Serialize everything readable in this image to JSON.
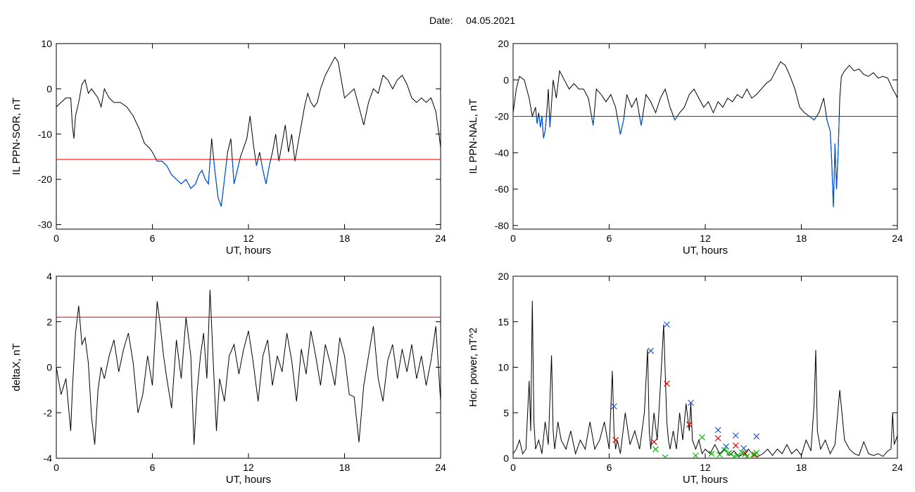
{
  "figure": {
    "date_label": "Date:",
    "date_value": "04.05.2021"
  },
  "chart_data": [
    {
      "type": "line",
      "xlabel": "UT, hours",
      "ylabel": "IL PPN-SOR, nT",
      "xlim": [
        0,
        24
      ],
      "ylim": [
        -31,
        10
      ],
      "xticks": [
        0,
        6,
        12,
        18,
        24
      ],
      "yticks": [
        -30,
        -20,
        -10,
        0,
        10
      ],
      "threshold": -15.6,
      "threshold_color": "#dd0000",
      "below_threshold_color": "#0055dd",
      "line_color": "#000000",
      "series": [
        {
          "x": [
            0,
            0.3,
            0.6,
            0.9,
            1.0,
            1.1,
            1.2,
            1.4,
            1.6,
            1.8,
            2.0,
            2.2,
            2.4,
            2.6,
            2.8,
            3.0,
            3.3,
            3.6,
            4.0,
            4.4,
            4.8,
            5.2,
            5.5,
            5.8,
            6.0,
            6.3,
            6.6,
            6.9,
            7.2,
            7.5,
            7.8,
            8.1,
            8.4,
            8.7,
            8.9,
            9.1,
            9.3,
            9.5,
            9.7,
            9.9,
            10.1,
            10.3,
            10.5,
            10.7,
            10.9,
            11.1,
            11.3,
            11.5,
            11.7,
            11.9,
            12.1,
            12.3,
            12.5,
            12.7,
            12.9,
            13.1,
            13.3,
            13.5,
            13.7,
            13.9,
            14.1,
            14.3,
            14.5,
            14.7,
            14.9,
            15.1,
            15.3,
            15.5,
            15.7,
            15.9,
            16.1,
            16.3,
            16.5,
            16.8,
            17.1,
            17.4,
            17.6,
            17.8,
            18.0,
            18.3,
            18.6,
            18.9,
            19.2,
            19.5,
            19.8,
            20.1,
            20.4,
            20.7,
            21.0,
            21.3,
            21.6,
            21.9,
            22.2,
            22.5,
            22.8,
            23.1,
            23.4,
            23.7,
            23.9,
            24.0
          ],
          "y": [
            -4,
            -3,
            -2,
            -2,
            -8,
            -11,
            -6,
            -3,
            1,
            2,
            -1,
            0,
            -1,
            -2,
            -4,
            0,
            -2,
            -3,
            -3,
            -4,
            -6,
            -9,
            -12,
            -13,
            -14,
            -16,
            -16,
            -17,
            -19,
            -20,
            -21,
            -20,
            -22,
            -21,
            -19,
            -18,
            -20,
            -21,
            -11,
            -18,
            -24,
            -26,
            -20,
            -14,
            -11,
            -21,
            -18,
            -15,
            -13,
            -11,
            -6,
            -12,
            -17,
            -14,
            -18,
            -21,
            -17,
            -14,
            -10,
            -16,
            -12,
            -8,
            -14,
            -10,
            -16,
            -12,
            -8,
            -4,
            -1,
            -3,
            -4,
            -3,
            0,
            3,
            5,
            7,
            6,
            2,
            -2,
            -1,
            0,
            -4,
            -8,
            -3,
            0,
            -1,
            3,
            2,
            0,
            2,
            3,
            1,
            -2,
            -3,
            -2,
            -3,
            -2,
            -5,
            -10,
            -13
          ]
        }
      ]
    },
    {
      "type": "line",
      "xlabel": "UT, hours",
      "ylabel": "IL PPN-NAL, nT",
      "xlim": [
        0,
        24
      ],
      "ylim": [
        -82,
        20
      ],
      "xticks": [
        0,
        6,
        12,
        18,
        24
      ],
      "yticks": [
        -80,
        -60,
        -40,
        -20,
        0,
        20
      ],
      "threshold": -20,
      "threshold_color": "#dd0000",
      "below_threshold_color": "#0055dd",
      "line_color": "#000000",
      "series": [
        {
          "x": [
            0,
            0.2,
            0.4,
            0.7,
            1.0,
            1.2,
            1.4,
            1.5,
            1.6,
            1.7,
            1.8,
            1.9,
            2.0,
            2.1,
            2.2,
            2.3,
            2.5,
            2.7,
            2.9,
            3.2,
            3.5,
            3.8,
            4.1,
            4.4,
            4.7,
            4.9,
            5.0,
            5.2,
            5.5,
            5.8,
            6.1,
            6.4,
            6.7,
            6.9,
            7.1,
            7.4,
            7.7,
            8.0,
            8.3,
            8.6,
            8.9,
            9.2,
            9.5,
            9.8,
            10.1,
            10.4,
            10.7,
            11.0,
            11.3,
            11.6,
            11.9,
            12.2,
            12.5,
            12.8,
            13.1,
            13.4,
            13.7,
            14.0,
            14.3,
            14.6,
            14.9,
            15.2,
            15.5,
            15.8,
            16.1,
            16.4,
            16.7,
            17.0,
            17.3,
            17.6,
            17.9,
            18.2,
            18.5,
            18.8,
            19.1,
            19.4,
            19.6,
            19.8,
            19.9,
            20.0,
            20.05,
            20.1,
            20.2,
            20.3,
            20.4,
            20.5,
            20.7,
            21.0,
            21.3,
            21.6,
            21.9,
            22.2,
            22.5,
            22.8,
            23.1,
            23.4,
            23.7,
            23.9,
            24.0
          ],
          "y": [
            -18,
            -5,
            2,
            0,
            -10,
            -20,
            -15,
            -24,
            -18,
            -26,
            -20,
            -32,
            -28,
            -18,
            -5,
            -26,
            0,
            -10,
            5,
            0,
            -5,
            -2,
            -5,
            -5,
            -10,
            -20,
            -25,
            -5,
            -8,
            -12,
            -8,
            -15,
            -30,
            -22,
            -8,
            -15,
            -10,
            -25,
            -8,
            -12,
            -18,
            -10,
            -5,
            -15,
            -22,
            -18,
            -15,
            -8,
            -5,
            -10,
            -15,
            -12,
            -18,
            -12,
            -15,
            -10,
            -12,
            -8,
            -10,
            -5,
            -10,
            -8,
            -5,
            -2,
            0,
            5,
            10,
            8,
            2,
            -5,
            -15,
            -18,
            -20,
            -22,
            -18,
            -10,
            -22,
            -28,
            -45,
            -70,
            -55,
            -35,
            -60,
            -40,
            -10,
            2,
            5,
            8,
            5,
            6,
            3,
            2,
            4,
            1,
            2,
            1,
            -5,
            -8,
            -10
          ]
        }
      ]
    },
    {
      "type": "line",
      "xlabel": "UT, hours",
      "ylabel": "deltaX, nT",
      "xlim": [
        0,
        24
      ],
      "ylim": [
        -4,
        4
      ],
      "xticks": [
        0,
        6,
        12,
        18,
        24
      ],
      "yticks": [
        -4,
        -2,
        0,
        2,
        4
      ],
      "threshold": 2.2,
      "threshold_color": "#dd0000",
      "line_color": "#000000",
      "series": [
        {
          "x": [
            0,
            0.3,
            0.6,
            0.9,
            1.0,
            1.2,
            1.4,
            1.6,
            1.8,
            2.0,
            2.2,
            2.4,
            2.6,
            2.8,
            3.0,
            3.3,
            3.6,
            3.9,
            4.2,
            4.5,
            4.8,
            5.1,
            5.4,
            5.7,
            6.0,
            6.3,
            6.5,
            6.7,
            6.9,
            7.2,
            7.5,
            7.8,
            8.1,
            8.4,
            8.6,
            8.8,
            9.0,
            9.2,
            9.4,
            9.6,
            9.8,
            10.0,
            10.2,
            10.5,
            10.8,
            11.1,
            11.4,
            11.7,
            12.0,
            12.3,
            12.6,
            12.9,
            13.2,
            13.5,
            13.8,
            14.1,
            14.4,
            14.7,
            15.0,
            15.3,
            15.6,
            15.9,
            16.2,
            16.5,
            16.8,
            17.1,
            17.4,
            17.7,
            18.0,
            18.3,
            18.6,
            18.9,
            19.2,
            19.5,
            19.8,
            20.1,
            20.4,
            20.7,
            21.0,
            21.3,
            21.6,
            21.9,
            22.2,
            22.5,
            22.8,
            23.1,
            23.4,
            23.7,
            24.0
          ],
          "y": [
            0,
            -1.2,
            -0.5,
            -2.8,
            -1,
            1.5,
            2.7,
            1,
            1.3,
            0.2,
            -2.2,
            -3.4,
            -1,
            0,
            -0.5,
            0.5,
            1.2,
            -0.2,
            0.8,
            1.5,
            0.2,
            -2,
            -1.2,
            0.5,
            -0.8,
            2.9,
            1.8,
            0.5,
            -0.5,
            -1.8,
            1.2,
            -0.5,
            2.2,
            0.5,
            -3.4,
            -1,
            0.5,
            1.5,
            -0.5,
            3.4,
            0.2,
            -2.8,
            -0.5,
            -1.5,
            0.5,
            1,
            -0.3,
            0.8,
            1.6,
            0.2,
            -1.5,
            0.5,
            1.2,
            -0.8,
            0.5,
            -0.2,
            1.5,
            0.3,
            -1.5,
            0.8,
            -0.3,
            1.6,
            0.5,
            -0.8,
            1,
            0.2,
            -0.8,
            1.3,
            0.5,
            -1.2,
            -1.3,
            -3.3,
            -0.8,
            0.5,
            1.8,
            -0.5,
            -1.5,
            0.3,
            1,
            -0.5,
            0.8,
            -0.2,
            1,
            -0.5,
            0.5,
            -0.8,
            0.3,
            1.8,
            -1.5
          ]
        }
      ]
    },
    {
      "type": "line",
      "xlabel": "UT, hours",
      "ylabel": "Hor. power, nT^2",
      "xlim": [
        0,
        24
      ],
      "ylim": [
        0,
        20
      ],
      "xticks": [
        0,
        6,
        12,
        18,
        24
      ],
      "yticks": [
        0,
        5,
        10,
        15,
        20
      ],
      "line_color": "#000000",
      "series": [
        {
          "x": [
            0,
            0.2,
            0.4,
            0.6,
            0.8,
            1.0,
            1.1,
            1.2,
            1.3,
            1.4,
            1.6,
            1.8,
            2.0,
            2.2,
            2.4,
            2.5,
            2.6,
            2.8,
            3.0,
            3.3,
            3.6,
            3.9,
            4.2,
            4.5,
            4.8,
            5.1,
            5.4,
            5.7,
            6.0,
            6.2,
            6.3,
            6.4,
            6.5,
            6.7,
            7.0,
            7.3,
            7.6,
            7.9,
            8.2,
            8.4,
            8.5,
            8.6,
            8.8,
            9.0,
            9.2,
            9.4,
            9.6,
            9.7,
            9.8,
            10.0,
            10.2,
            10.4,
            10.6,
            10.8,
            11.0,
            11.1,
            11.2,
            11.4,
            11.6,
            11.8,
            12.0,
            12.3,
            12.6,
            12.9,
            13.2,
            13.5,
            13.8,
            14.1,
            14.4,
            14.7,
            15.0,
            15.3,
            15.6,
            15.9,
            16.2,
            16.5,
            16.8,
            17.1,
            17.4,
            17.7,
            18.0,
            18.3,
            18.6,
            18.8,
            18.9,
            19.0,
            19.2,
            19.5,
            19.8,
            20.1,
            20.4,
            20.7,
            21.0,
            21.3,
            21.6,
            21.9,
            22.2,
            22.5,
            22.8,
            23.1,
            23.4,
            23.6,
            23.7,
            23.8,
            24.0
          ],
          "y": [
            0.5,
            1,
            2,
            0.5,
            1,
            8.5,
            3,
            17.3,
            4,
            1,
            2,
            0.5,
            4,
            1.5,
            11.3,
            3,
            1,
            4,
            2,
            1,
            3,
            0.5,
            2,
            1,
            4,
            1,
            2,
            4,
            1,
            9.6,
            3,
            1,
            2,
            0.5,
            5,
            1.5,
            3,
            1,
            5,
            12,
            3,
            1,
            5,
            2,
            8,
            14.7,
            4,
            2,
            1,
            3,
            1,
            5,
            2,
            6,
            3,
            6.1,
            2,
            1,
            2,
            0.5,
            1,
            0.5,
            1.5,
            0.5,
            1,
            0.3,
            0.8,
            0.2,
            0.5,
            1,
            0.3,
            0.2,
            0.5,
            1,
            0.3,
            1,
            0.5,
            1.5,
            0.5,
            1,
            0.3,
            2,
            0.8,
            6,
            11.9,
            3,
            1,
            2,
            0.5,
            1.5,
            7.5,
            2,
            1,
            0.5,
            0.3,
            1.8,
            0.5,
            0.3,
            0.5,
            0.2,
            0.8,
            1,
            5,
            1.5,
            2.5
          ]
        }
      ],
      "markers": [
        {
          "name": "blue-x",
          "color": "#2255cc",
          "points": [
            [
              6.3,
              5.7
            ],
            [
              8.6,
              11.8
            ],
            [
              9.6,
              14.7
            ],
            [
              11.1,
              6.1
            ],
            [
              12.8,
              3.1
            ],
            [
              13.3,
              1.3
            ],
            [
              13.9,
              2.5
            ],
            [
              14.4,
              1.1
            ],
            [
              15.2,
              2.4
            ]
          ]
        },
        {
          "name": "red-x",
          "color": "#dd0000",
          "points": [
            [
              6.4,
              2
            ],
            [
              8.8,
              1.8
            ],
            [
              9.6,
              8.2
            ],
            [
              11.0,
              3.7
            ],
            [
              12.8,
              2.2
            ],
            [
              13.9,
              1.4
            ],
            [
              14.5,
              0.5
            ],
            [
              15.1,
              0.4
            ]
          ]
        },
        {
          "name": "green-x",
          "color": "#00bb00",
          "points": [
            [
              8.9,
              1.0
            ],
            [
              9.5,
              0.1
            ],
            [
              11.4,
              0.3
            ],
            [
              11.8,
              2.3
            ],
            [
              12.4,
              0.5
            ],
            [
              12.9,
              0.4
            ],
            [
              13.2,
              0.9
            ],
            [
              13.5,
              0.6
            ],
            [
              13.8,
              0.2
            ],
            [
              14.0,
              0.3
            ],
            [
              14.3,
              0.6
            ],
            [
              14.6,
              0.2
            ],
            [
              15.0,
              0.4
            ],
            [
              15.2,
              0.6
            ]
          ]
        }
      ]
    }
  ]
}
